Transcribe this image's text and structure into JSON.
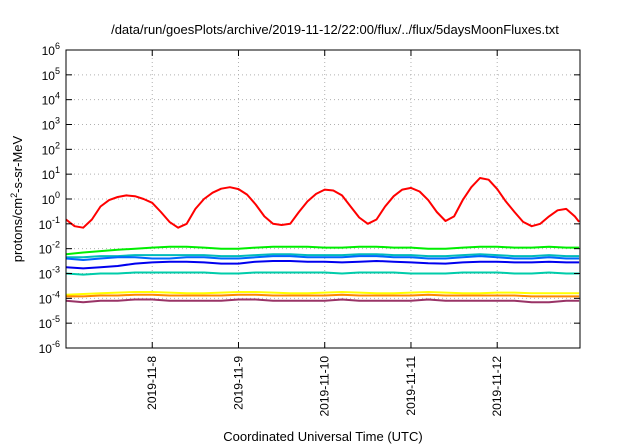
{
  "chart_data": {
    "type": "line",
    "title": "/data/run/goesPlots/archive/2019-11-12/22:00/flux/../flux/5daysMoonFluxes.txt",
    "xlabel": "Coordinated Universal Time (UTC)",
    "ylabel": "protons/cm²-s-sr-MeV",
    "ylabel_parts": {
      "pre": "protons/cm",
      "sup": "2",
      "post": "-s-sr-MeV"
    },
    "yscale": "log",
    "ylim": [
      1e-06,
      1000000.0
    ],
    "yticks": [
      {
        "base": "10",
        "exp": "-6"
      },
      {
        "base": "10",
        "exp": "-5"
      },
      {
        "base": "10",
        "exp": "-4"
      },
      {
        "base": "10",
        "exp": "-3"
      },
      {
        "base": "10",
        "exp": "-2"
      },
      {
        "base": "10",
        "exp": "-1"
      },
      {
        "base": "10",
        "exp": "0"
      },
      {
        "base": "10",
        "exp": "1"
      },
      {
        "base": "10",
        "exp": "2"
      },
      {
        "base": "10",
        "exp": "3"
      },
      {
        "base": "10",
        "exp": "4"
      },
      {
        "base": "10",
        "exp": "5"
      },
      {
        "base": "10",
        "exp": "6"
      }
    ],
    "xlim": [
      "2019-11-07T00:00",
      "2019-11-12T23:00"
    ],
    "xticks": [
      "2019-11-8",
      "2019-11-9",
      "2019-11-10",
      "2019-11-11",
      "2019-11-12"
    ],
    "xtick_days": [
      1,
      2,
      3,
      4,
      5
    ],
    "x_unit": "days since 2019-11-07 00:00",
    "grid": true,
    "series": [
      {
        "color": "#ff0000",
        "x": [
          0.0,
          0.1,
          0.2,
          0.3,
          0.4,
          0.5,
          0.6,
          0.7,
          0.8,
          0.9,
          1.0,
          1.1,
          1.2,
          1.3,
          1.4,
          1.5,
          1.6,
          1.7,
          1.8,
          1.9,
          2.0,
          2.1,
          2.2,
          2.3,
          2.4,
          2.5,
          2.6,
          2.7,
          2.8,
          2.9,
          3.0,
          3.1,
          3.2,
          3.3,
          3.4,
          3.5,
          3.6,
          3.7,
          3.8,
          3.9,
          4.0,
          4.1,
          4.2,
          4.3,
          4.4,
          4.5,
          4.6,
          4.7,
          4.8,
          4.9,
          5.0,
          5.1,
          5.2,
          5.3,
          5.4,
          5.5,
          5.6,
          5.7,
          5.8,
          5.9,
          5.95
        ],
        "y": [
          0.15,
          0.08,
          0.07,
          0.15,
          0.5,
          0.9,
          1.2,
          1.4,
          1.3,
          1.0,
          0.7,
          0.3,
          0.12,
          0.07,
          0.1,
          0.4,
          1.0,
          1.8,
          2.6,
          3.0,
          2.5,
          1.5,
          0.6,
          0.2,
          0.1,
          0.09,
          0.1,
          0.3,
          0.8,
          1.6,
          2.4,
          2.2,
          1.4,
          0.5,
          0.18,
          0.1,
          0.15,
          0.5,
          1.3,
          2.4,
          2.8,
          2.0,
          0.9,
          0.3,
          0.13,
          0.2,
          0.9,
          3.0,
          7.0,
          6.0,
          2.5,
          0.8,
          0.3,
          0.12,
          0.08,
          0.1,
          0.2,
          0.35,
          0.4,
          0.2,
          0.12
        ]
      },
      {
        "color": "#00ee00",
        "x": [
          0.0,
          0.2,
          0.4,
          0.6,
          0.8,
          1.0,
          1.2,
          1.4,
          1.6,
          1.8,
          2.0,
          2.2,
          2.4,
          2.6,
          2.8,
          3.0,
          3.2,
          3.4,
          3.6,
          3.8,
          4.0,
          4.2,
          4.4,
          4.6,
          4.8,
          5.0,
          5.2,
          5.4,
          5.6,
          5.8,
          5.95
        ],
        "y": [
          0.006,
          0.007,
          0.008,
          0.009,
          0.01,
          0.011,
          0.012,
          0.012,
          0.011,
          0.01,
          0.01,
          0.011,
          0.012,
          0.012,
          0.012,
          0.011,
          0.011,
          0.012,
          0.012,
          0.011,
          0.011,
          0.01,
          0.01,
          0.011,
          0.012,
          0.012,
          0.011,
          0.011,
          0.012,
          0.011,
          0.011
        ]
      },
      {
        "color": "#00bbbb",
        "x": [
          0.0,
          0.2,
          0.4,
          0.6,
          0.8,
          1.0,
          1.2,
          1.4,
          1.6,
          1.8,
          2.0,
          2.2,
          2.4,
          2.6,
          2.8,
          3.0,
          3.2,
          3.4,
          3.6,
          3.8,
          4.0,
          4.2,
          4.4,
          4.6,
          4.8,
          5.0,
          5.2,
          5.4,
          5.6,
          5.8,
          5.95
        ],
        "y": [
          0.0045,
          0.0045,
          0.005,
          0.005,
          0.0055,
          0.0055,
          0.0055,
          0.0055,
          0.0055,
          0.005,
          0.005,
          0.0055,
          0.006,
          0.006,
          0.0055,
          0.0055,
          0.0055,
          0.006,
          0.006,
          0.0055,
          0.0055,
          0.005,
          0.005,
          0.0055,
          0.006,
          0.0055,
          0.005,
          0.005,
          0.0055,
          0.005,
          0.005
        ]
      },
      {
        "color": "#0066ff",
        "x": [
          0.0,
          0.2,
          0.4,
          0.6,
          0.8,
          1.0,
          1.2,
          1.4,
          1.6,
          1.8,
          2.0,
          2.2,
          2.4,
          2.6,
          2.8,
          3.0,
          3.2,
          3.4,
          3.6,
          3.8,
          4.0,
          4.2,
          4.4,
          4.6,
          4.8,
          5.0,
          5.2,
          5.4,
          5.6,
          5.8,
          5.95
        ],
        "y": [
          0.004,
          0.0035,
          0.004,
          0.0045,
          0.0045,
          0.004,
          0.004,
          0.0045,
          0.0045,
          0.004,
          0.004,
          0.0045,
          0.005,
          0.005,
          0.0045,
          0.0045,
          0.0045,
          0.005,
          0.005,
          0.0045,
          0.0045,
          0.004,
          0.004,
          0.0045,
          0.005,
          0.0045,
          0.004,
          0.004,
          0.0045,
          0.004,
          0.004
        ]
      },
      {
        "color": "#0000ee",
        "x": [
          0.0,
          0.2,
          0.4,
          0.6,
          0.8,
          1.0,
          1.2,
          1.4,
          1.6,
          1.8,
          2.0,
          2.2,
          2.4,
          2.6,
          2.8,
          3.0,
          3.2,
          3.4,
          3.6,
          3.8,
          4.0,
          4.2,
          4.4,
          4.6,
          4.8,
          5.0,
          5.2,
          5.4,
          5.6,
          5.8,
          5.95
        ],
        "y": [
          0.0018,
          0.0016,
          0.0018,
          0.002,
          0.0025,
          0.0028,
          0.003,
          0.003,
          0.0028,
          0.0025,
          0.0025,
          0.003,
          0.0032,
          0.0032,
          0.003,
          0.003,
          0.0028,
          0.003,
          0.0032,
          0.003,
          0.0028,
          0.0026,
          0.0025,
          0.0028,
          0.003,
          0.003,
          0.0028,
          0.0028,
          0.003,
          0.0028,
          0.0028
        ]
      },
      {
        "color": "#00ccaa",
        "x": [
          0.0,
          0.2,
          0.4,
          0.6,
          0.8,
          1.0,
          1.2,
          1.4,
          1.6,
          1.8,
          2.0,
          2.2,
          2.4,
          2.6,
          2.8,
          3.0,
          3.2,
          3.4,
          3.6,
          3.8,
          4.0,
          4.2,
          4.4,
          4.6,
          4.8,
          5.0,
          5.2,
          5.4,
          5.6,
          5.8,
          5.95
        ],
        "y": [
          0.001,
          0.0009,
          0.001,
          0.001,
          0.0011,
          0.0011,
          0.0011,
          0.0011,
          0.0011,
          0.001,
          0.001,
          0.0011,
          0.0011,
          0.0011,
          0.0011,
          0.0011,
          0.001,
          0.0011,
          0.0011,
          0.0011,
          0.001,
          0.001,
          0.001,
          0.0011,
          0.0011,
          0.0011,
          0.001,
          0.001,
          0.0011,
          0.001,
          0.001
        ]
      },
      {
        "color": "#ffff00",
        "x": [
          0.0,
          0.2,
          0.4,
          0.6,
          0.8,
          1.0,
          1.2,
          1.4,
          1.6,
          1.8,
          2.0,
          2.2,
          2.4,
          2.6,
          2.8,
          3.0,
          3.2,
          3.4,
          3.6,
          3.8,
          4.0,
          4.2,
          4.4,
          4.6,
          4.8,
          5.0,
          5.2,
          5.4,
          5.6,
          5.8,
          5.95
        ],
        "y": [
          0.00014,
          0.00015,
          0.00016,
          0.00017,
          0.00018,
          0.00018,
          0.00017,
          0.00016,
          0.00016,
          0.00017,
          0.00018,
          0.00018,
          0.00017,
          0.00016,
          0.00016,
          0.00017,
          0.00018,
          0.00017,
          0.00016,
          0.00016,
          0.00017,
          0.00018,
          0.00017,
          0.00016,
          0.00016,
          0.00017,
          0.00017,
          0.00016,
          0.00016,
          0.00016,
          0.00016
        ]
      },
      {
        "color": "#ff8800",
        "x": [
          0.0,
          0.2,
          0.4,
          0.6,
          0.8,
          1.0,
          1.2,
          1.4,
          1.6,
          1.8,
          2.0,
          2.2,
          2.4,
          2.6,
          2.8,
          3.0,
          3.2,
          3.4,
          3.6,
          3.8,
          4.0,
          4.2,
          4.4,
          4.6,
          4.8,
          5.0,
          5.2,
          5.4,
          5.6,
          5.8,
          5.95
        ],
        "y": [
          0.00012,
          0.00012,
          0.00013,
          0.00013,
          0.00014,
          0.00014,
          0.00013,
          0.00013,
          0.00013,
          0.00013,
          0.00014,
          0.00014,
          0.00013,
          0.00013,
          0.00013,
          0.00013,
          0.00014,
          0.00013,
          0.00013,
          0.00013,
          0.00013,
          0.00014,
          0.00013,
          0.00013,
          0.00013,
          0.00013,
          0.00013,
          0.00012,
          0.00012,
          0.00012,
          0.00012
        ]
      },
      {
        "color": "#993366",
        "x": [
          0.0,
          0.2,
          0.4,
          0.6,
          0.8,
          1.0,
          1.2,
          1.4,
          1.6,
          1.8,
          2.0,
          2.2,
          2.4,
          2.6,
          2.8,
          3.0,
          3.2,
          3.4,
          3.6,
          3.8,
          4.0,
          4.2,
          4.4,
          4.6,
          4.8,
          5.0,
          5.2,
          5.4,
          5.6,
          5.8,
          5.95
        ],
        "y": [
          8e-05,
          7e-05,
          8e-05,
          8e-05,
          9e-05,
          9e-05,
          8e-05,
          8e-05,
          8e-05,
          8e-05,
          9e-05,
          9e-05,
          8e-05,
          8e-05,
          8e-05,
          8e-05,
          9e-05,
          8e-05,
          8e-05,
          8e-05,
          8e-05,
          9e-05,
          8e-05,
          8e-05,
          8e-05,
          8e-05,
          8e-05,
          7e-05,
          7e-05,
          8e-05,
          8e-05
        ]
      }
    ]
  }
}
